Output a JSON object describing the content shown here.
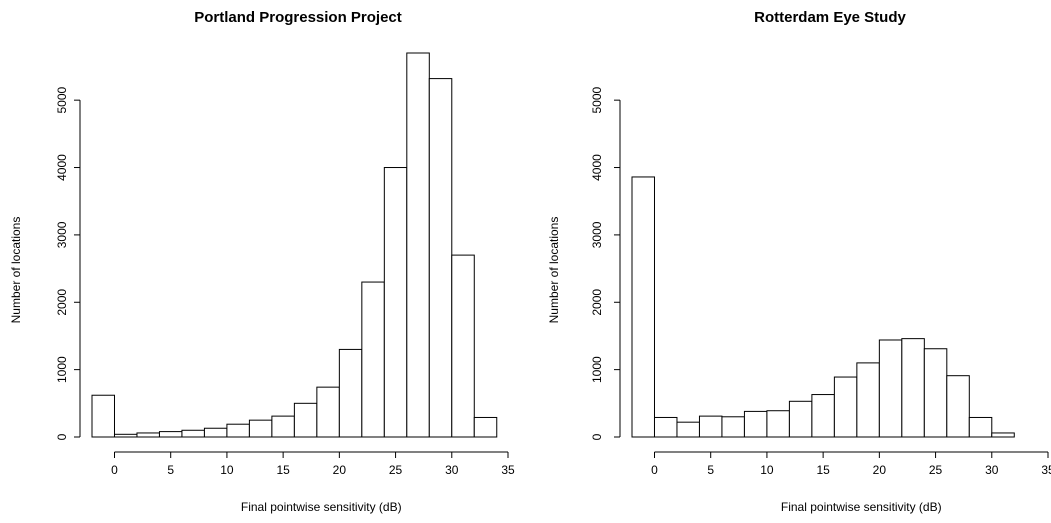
{
  "chart_data": [
    {
      "type": "bar",
      "title": "Portland Progression Project",
      "xlabel": "Final pointwise sensitivity (dB)",
      "ylabel": "Number of locations",
      "bin_width": 2,
      "bin_starts": [
        -2,
        0,
        2,
        4,
        6,
        8,
        10,
        12,
        14,
        16,
        18,
        20,
        22,
        24,
        26,
        28,
        30,
        32
      ],
      "values": [
        620,
        40,
        60,
        80,
        100,
        130,
        190,
        250,
        310,
        500,
        740,
        1300,
        2300,
        4000,
        5700,
        5320,
        2700,
        290
      ],
      "xlim": [
        -2,
        35
      ],
      "ylim": [
        0,
        5700
      ],
      "xticks": [
        0,
        5,
        10,
        15,
        20,
        25,
        30,
        35
      ],
      "yticks": [
        0,
        1000,
        2000,
        3000,
        4000,
        5000
      ]
    },
    {
      "type": "bar",
      "title": "Rotterdam Eye Study",
      "xlabel": "Final pointwise sensitivity (dB)",
      "ylabel": "Number of locations",
      "bin_width": 2,
      "bin_starts": [
        -2,
        0,
        2,
        4,
        6,
        8,
        10,
        12,
        14,
        16,
        18,
        20,
        22,
        24,
        26,
        28,
        30
      ],
      "values": [
        3860,
        290,
        220,
        310,
        300,
        380,
        390,
        530,
        630,
        890,
        1100,
        1440,
        1460,
        1310,
        910,
        290,
        60
      ],
      "xlim": [
        -2,
        35
      ],
      "ylim": [
        0,
        5700
      ],
      "xticks": [
        0,
        5,
        10,
        15,
        20,
        25,
        30,
        35
      ],
      "yticks": [
        0,
        1000,
        2000,
        3000,
        4000,
        5000
      ]
    }
  ]
}
